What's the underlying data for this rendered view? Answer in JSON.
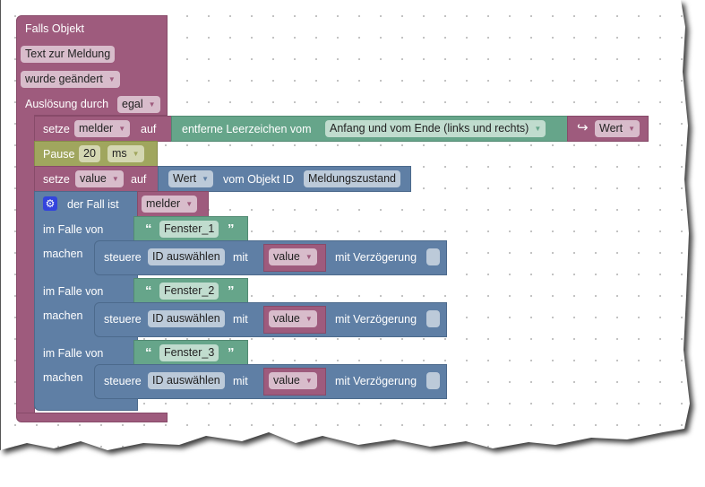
{
  "event": {
    "title": "Falls Objekt",
    "object": "Text zur Meldung",
    "condition": "wurde geändert",
    "trigger_label": "Auslösung durch",
    "trigger_value": "egal"
  },
  "set_melder": {
    "setze": "setze",
    "var": "melder",
    "auf": "auf",
    "trim_label": "entferne Leerzeichen vom",
    "trim_mode": "Anfang und vom Ende (links und rechts)",
    "value": "Wert"
  },
  "pause": {
    "label": "Pause",
    "amount": "20",
    "unit": "ms"
  },
  "set_value": {
    "setze": "setze",
    "var": "value",
    "auf": "auf",
    "prop": "Wert",
    "from_label": "vom Objekt ID",
    "object_id": "Meldungszustand"
  },
  "switch": {
    "label": "der Fall ist",
    "var": "melder",
    "cases": [
      {
        "case_label": "im Falle von",
        "value": "Fenster_1",
        "do_label": "machen",
        "control": "steuere",
        "id": "ID auswählen",
        "mit": "mit",
        "var": "value",
        "delay": "mit Verzögerung"
      },
      {
        "case_label": "im Falle von",
        "value": "Fenster_2",
        "do_label": "machen",
        "control": "steuere",
        "id": "ID auswählen",
        "mit": "mit",
        "var": "value",
        "delay": "mit Verzögerung"
      },
      {
        "case_label": "im Falle von",
        "value": "Fenster_3",
        "do_label": "machen",
        "control": "steuere",
        "id": "ID auswählen",
        "mit": "mit",
        "var": "value",
        "delay": "mit Verzögerung"
      }
    ]
  },
  "colors": {
    "event": "#9e5b7d",
    "text": "#66a58a",
    "timer": "#a0a65e",
    "object": "#5f7fa5"
  }
}
